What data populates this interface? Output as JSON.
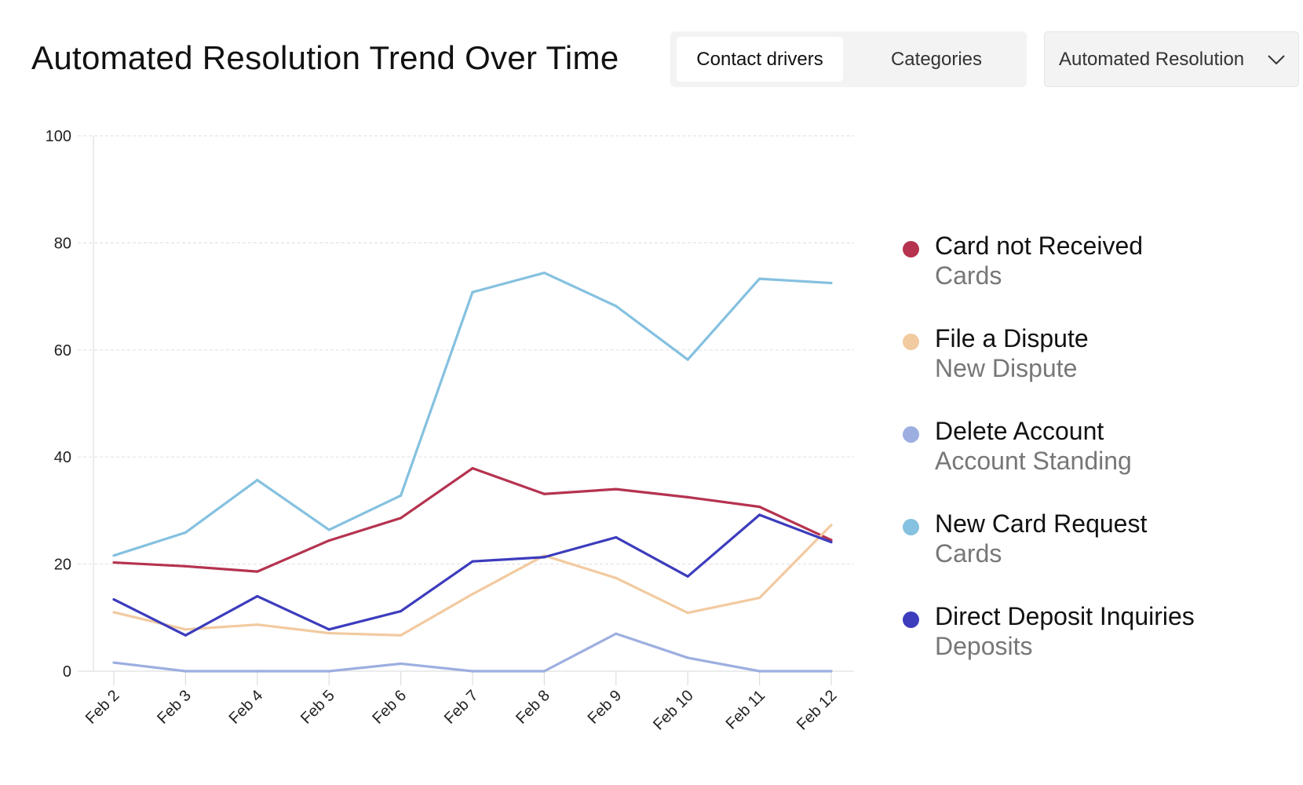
{
  "header": {
    "title": "Automated Resolution Trend Over Time",
    "tabs": [
      {
        "label": "Contact drivers",
        "active": true
      },
      {
        "label": "Categories",
        "active": false
      }
    ],
    "dropdown": {
      "selected": "Automated Resolution",
      "icon": "chevron-down-icon"
    }
  },
  "chart_data": {
    "type": "line",
    "title": "Automated Resolution Trend Over Time",
    "categories": [
      "Feb 2",
      "Feb 3",
      "Feb 4",
      "Feb 5",
      "Feb 6",
      "Feb 7",
      "Feb 8",
      "Feb 9",
      "Feb 10",
      "Feb 11",
      "Feb 12"
    ],
    "ylim": [
      0,
      100
    ],
    "yticks": [
      "0",
      "20",
      "40",
      "60",
      "80",
      "100"
    ],
    "grid": true,
    "legend_position": "right",
    "series": [
      {
        "name": "Card not Received",
        "category": "Cards",
        "color": "#b5334f",
        "values": [
          20.3,
          19.6,
          18.6,
          24.4,
          28.6,
          37.9,
          33.1,
          34.0,
          32.5,
          30.7,
          24.5
        ]
      },
      {
        "name": "File a Dispute",
        "category": "New Dispute",
        "color": "#f2caa0",
        "values": [
          11.0,
          7.8,
          8.7,
          7.1,
          6.7,
          14.4,
          21.6,
          17.4,
          10.9,
          13.7,
          27.3
        ]
      },
      {
        "name": "Delete Account",
        "category": "Account Standing",
        "color": "#9daee0",
        "values": [
          1.6,
          0,
          0,
          0,
          1.4,
          0,
          0,
          7.0,
          2.5,
          0,
          0
        ]
      },
      {
        "name": "New Card Request",
        "category": "Cards",
        "color": "#85c1e0",
        "values": [
          21.6,
          25.9,
          35.7,
          26.4,
          32.8,
          70.8,
          74.4,
          68.2,
          58.2,
          73.3,
          72.5
        ]
      },
      {
        "name": "Direct Deposit Inquiries",
        "category": "Deposits",
        "color": "#3c3cbd",
        "values": [
          13.4,
          6.7,
          14.0,
          7.8,
          11.2,
          20.5,
          21.3,
          25.0,
          17.7,
          29.2,
          24.1
        ]
      }
    ]
  }
}
